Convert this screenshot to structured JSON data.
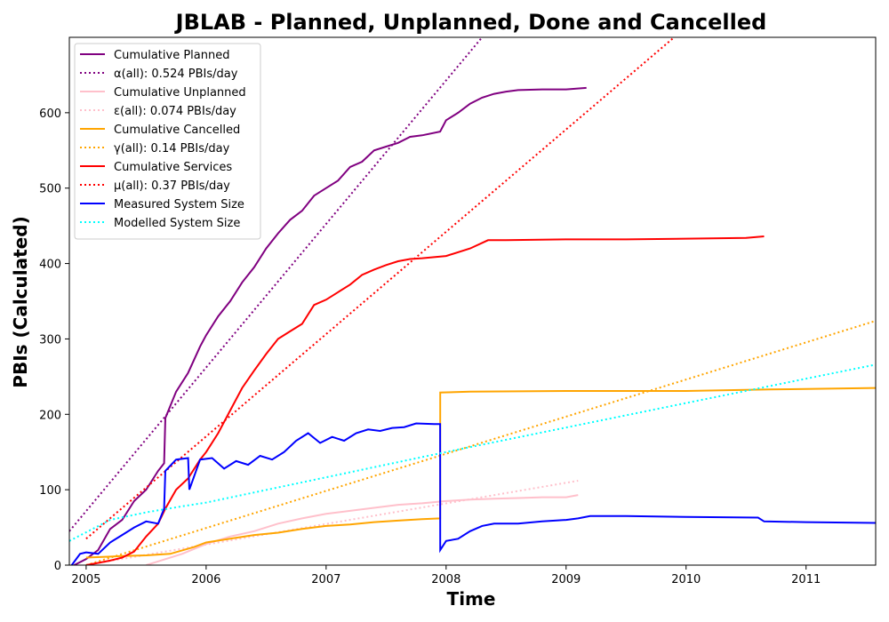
{
  "chart_data": {
    "type": "line",
    "title": "JBLAB - Planned, Unplanned, Done  and Cancelled",
    "xlabel": "Time",
    "ylabel": "PBIs (Calculated)",
    "xlim": [
      2004.86,
      2011.58
    ],
    "ylim": [
      0,
      700
    ],
    "x_ticks": [
      2005,
      2006,
      2007,
      2008,
      2009,
      2010,
      2011
    ],
    "y_ticks": [
      0,
      100,
      200,
      300,
      400,
      500,
      600
    ],
    "grid": false,
    "legend_position": "upper-left",
    "series": [
      {
        "name": "Cumulative Planned",
        "color": "#800080",
        "style": "solid",
        "points": [
          [
            2004.9,
            0
          ],
          [
            2005.0,
            8
          ],
          [
            2005.1,
            20
          ],
          [
            2005.2,
            48
          ],
          [
            2005.3,
            60
          ],
          [
            2005.4,
            85
          ],
          [
            2005.5,
            100
          ],
          [
            2005.6,
            125
          ],
          [
            2005.65,
            135
          ],
          [
            2005.66,
            195
          ],
          [
            2005.75,
            230
          ],
          [
            2005.85,
            255
          ],
          [
            2005.95,
            290
          ],
          [
            2006.0,
            305
          ],
          [
            2006.1,
            330
          ],
          [
            2006.2,
            350
          ],
          [
            2006.3,
            375
          ],
          [
            2006.4,
            395
          ],
          [
            2006.5,
            420
          ],
          [
            2006.6,
            440
          ],
          [
            2006.7,
            458
          ],
          [
            2006.8,
            470
          ],
          [
            2006.9,
            490
          ],
          [
            2007.0,
            500
          ],
          [
            2007.1,
            510
          ],
          [
            2007.2,
            528
          ],
          [
            2007.3,
            535
          ],
          [
            2007.4,
            550
          ],
          [
            2007.5,
            555
          ],
          [
            2007.6,
            560
          ],
          [
            2007.7,
            568
          ],
          [
            2007.8,
            570
          ],
          [
            2007.95,
            575
          ],
          [
            2008.0,
            590
          ],
          [
            2008.1,
            600
          ],
          [
            2008.2,
            612
          ],
          [
            2008.3,
            620
          ],
          [
            2008.4,
            625
          ],
          [
            2008.5,
            628
          ],
          [
            2008.6,
            630
          ],
          [
            2008.8,
            631
          ],
          [
            2009.0,
            631
          ],
          [
            2009.17,
            633
          ]
        ]
      },
      {
        "name": "α(all): 0.524 PBIs/day",
        "color": "#800080",
        "style": "dotted",
        "points": [
          [
            2004.86,
            45
          ],
          [
            2008.3,
            700
          ]
        ]
      },
      {
        "name": "Cumulative Unplanned",
        "color": "#ffc0cb",
        "style": "solid",
        "points": [
          [
            2005.5,
            0
          ],
          [
            2005.6,
            5
          ],
          [
            2005.8,
            15
          ],
          [
            2006.0,
            28
          ],
          [
            2006.2,
            38
          ],
          [
            2006.4,
            45
          ],
          [
            2006.6,
            55
          ],
          [
            2006.8,
            62
          ],
          [
            2007.0,
            68
          ],
          [
            2007.2,
            72
          ],
          [
            2007.4,
            76
          ],
          [
            2007.6,
            80
          ],
          [
            2007.8,
            82
          ],
          [
            2008.0,
            85
          ],
          [
            2008.2,
            87
          ],
          [
            2008.4,
            88
          ],
          [
            2008.6,
            89
          ],
          [
            2008.8,
            90
          ],
          [
            2009.0,
            90
          ],
          [
            2009.1,
            93
          ]
        ]
      },
      {
        "name": "ε(all): 0.074 PBIs/day",
        "color": "#ffc0cb",
        "style": "dotted",
        "points": [
          [
            2005.0,
            0
          ],
          [
            2009.1,
            112
          ]
        ]
      },
      {
        "name": "Cumulative Cancelled",
        "color": "#ffa500",
        "style": "solid",
        "points": [
          [
            2005.0,
            10
          ],
          [
            2005.3,
            12
          ],
          [
            2005.5,
            13
          ],
          [
            2005.7,
            15
          ],
          [
            2005.9,
            24
          ],
          [
            2006.0,
            30
          ],
          [
            2006.2,
            35
          ],
          [
            2006.4,
            40
          ],
          [
            2006.6,
            43
          ],
          [
            2006.8,
            48
          ],
          [
            2007.0,
            52
          ],
          [
            2007.2,
            54
          ],
          [
            2007.4,
            57
          ],
          [
            2007.6,
            59
          ],
          [
            2007.8,
            61
          ],
          [
            2007.95,
            62
          ],
          [
            2007.951,
            229
          ],
          [
            2008.2,
            230
          ],
          [
            2009.0,
            231
          ],
          [
            2010.0,
            231
          ],
          [
            2010.7,
            233
          ],
          [
            2011.58,
            235
          ]
        ]
      },
      {
        "name": "γ(all): 0.14 PBIs/day",
        "color": "#ffa500",
        "style": "dotted",
        "points": [
          [
            2005.0,
            0
          ],
          [
            2011.58,
            324
          ]
        ]
      },
      {
        "name": "Cumulative Services",
        "color": "#ff0000",
        "style": "solid",
        "points": [
          [
            2005.0,
            0
          ],
          [
            2005.1,
            3
          ],
          [
            2005.2,
            6
          ],
          [
            2005.3,
            10
          ],
          [
            2005.4,
            18
          ],
          [
            2005.5,
            38
          ],
          [
            2005.6,
            55
          ],
          [
            2005.66,
            75
          ],
          [
            2005.75,
            100
          ],
          [
            2005.85,
            115
          ],
          [
            2005.95,
            140
          ],
          [
            2006.0,
            150
          ],
          [
            2006.1,
            175
          ],
          [
            2006.2,
            205
          ],
          [
            2006.3,
            235
          ],
          [
            2006.4,
            258
          ],
          [
            2006.5,
            280
          ],
          [
            2006.6,
            300
          ],
          [
            2006.7,
            310
          ],
          [
            2006.8,
            320
          ],
          [
            2006.9,
            345
          ],
          [
            2007.0,
            352
          ],
          [
            2007.1,
            362
          ],
          [
            2007.2,
            372
          ],
          [
            2007.3,
            385
          ],
          [
            2007.4,
            392
          ],
          [
            2007.5,
            398
          ],
          [
            2007.6,
            403
          ],
          [
            2007.7,
            406
          ],
          [
            2007.8,
            407
          ],
          [
            2008.0,
            410
          ],
          [
            2008.2,
            420
          ],
          [
            2008.35,
            431
          ],
          [
            2008.5,
            431
          ],
          [
            2009.0,
            432
          ],
          [
            2009.5,
            432
          ],
          [
            2010.0,
            433
          ],
          [
            2010.5,
            434
          ],
          [
            2010.65,
            436
          ]
        ]
      },
      {
        "name": "μ(all): 0.37 PBIs/day",
        "color": "#ff0000",
        "style": "dotted",
        "points": [
          [
            2005.0,
            35
          ],
          [
            2009.9,
            700
          ]
        ]
      },
      {
        "name": "Measured System Size",
        "color": "#0000ff",
        "style": "solid",
        "points": [
          [
            2004.88,
            0
          ],
          [
            2004.95,
            15
          ],
          [
            2005.0,
            17
          ],
          [
            2005.1,
            15
          ],
          [
            2005.2,
            30
          ],
          [
            2005.3,
            40
          ],
          [
            2005.4,
            50
          ],
          [
            2005.5,
            58
          ],
          [
            2005.6,
            55
          ],
          [
            2005.65,
            75
          ],
          [
            2005.66,
            125
          ],
          [
            2005.75,
            140
          ],
          [
            2005.85,
            142
          ],
          [
            2005.86,
            100
          ],
          [
            2005.95,
            140
          ],
          [
            2006.05,
            142
          ],
          [
            2006.15,
            128
          ],
          [
            2006.25,
            138
          ],
          [
            2006.35,
            133
          ],
          [
            2006.45,
            145
          ],
          [
            2006.55,
            140
          ],
          [
            2006.65,
            150
          ],
          [
            2006.75,
            165
          ],
          [
            2006.85,
            175
          ],
          [
            2006.95,
            162
          ],
          [
            2007.05,
            170
          ],
          [
            2007.15,
            165
          ],
          [
            2007.25,
            175
          ],
          [
            2007.35,
            180
          ],
          [
            2007.45,
            178
          ],
          [
            2007.55,
            182
          ],
          [
            2007.65,
            183
          ],
          [
            2007.75,
            188
          ],
          [
            2007.9,
            187
          ],
          [
            2007.95,
            187
          ],
          [
            2007.951,
            20
          ],
          [
            2008.0,
            32
          ],
          [
            2008.1,
            35
          ],
          [
            2008.2,
            45
          ],
          [
            2008.3,
            52
          ],
          [
            2008.4,
            55
          ],
          [
            2008.6,
            55
          ],
          [
            2008.8,
            58
          ],
          [
            2009.0,
            60
          ],
          [
            2009.1,
            62
          ],
          [
            2009.2,
            65
          ],
          [
            2009.5,
            65
          ],
          [
            2010.0,
            64
          ],
          [
            2010.6,
            63
          ],
          [
            2010.65,
            58
          ],
          [
            2011.0,
            57
          ],
          [
            2011.58,
            56
          ]
        ]
      },
      {
        "name": "Modelled System Size",
        "color": "#00ffff",
        "style": "dotted",
        "points": [
          [
            2004.86,
            32
          ],
          [
            2005.2,
            60
          ],
          [
            2005.5,
            70
          ],
          [
            2005.8,
            78
          ],
          [
            2006.0,
            83
          ],
          [
            2008.0,
            150
          ],
          [
            2010.0,
            215
          ],
          [
            2011.58,
            266
          ]
        ]
      }
    ]
  }
}
